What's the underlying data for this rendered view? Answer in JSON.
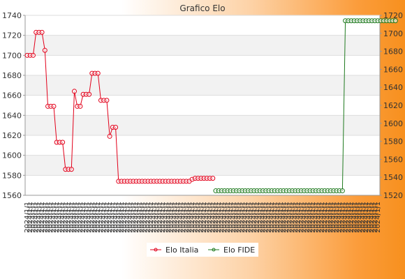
{
  "chart_data": {
    "type": "line",
    "title": "Grafico Elo",
    "xlabel": "",
    "ylabel": "",
    "grid": true,
    "legend_position": "bottom",
    "y_left": {
      "min": 1560,
      "max": 1740,
      "step": 20,
      "ticks": [
        "1560",
        "1580",
        "1600",
        "1620",
        "1640",
        "1660",
        "1680",
        "1700",
        "1720",
        "1740"
      ]
    },
    "y_right": {
      "min": 1520,
      "max": 1720,
      "step": 20,
      "ticks": [
        "1520",
        "1540",
        "1560",
        "1580",
        "1600",
        "1620",
        "1640",
        "1660",
        "1680",
        "1700",
        "1720"
      ]
    },
    "x_tick_label": "2024/1/1",
    "x_count": 120,
    "series": [
      {
        "name": "Elo Italia",
        "axis": "left",
        "color": "#e2001a",
        "values": [
          1700,
          1700,
          1700,
          1723,
          1723,
          1723,
          1705,
          1649,
          1649,
          1649,
          1613,
          1613,
          1613,
          1586,
          1586,
          1586,
          1664,
          1649,
          1649,
          1661,
          1661,
          1661,
          1682,
          1682,
          1682,
          1655,
          1655,
          1655,
          1619,
          1628,
          1628,
          1574,
          1574,
          1574,
          1574,
          1574,
          1574,
          1574,
          1574,
          1574,
          1574,
          1574,
          1574,
          1574,
          1574,
          1574,
          1574,
          1574,
          1574,
          1574,
          1574,
          1574,
          1574,
          1574,
          1574,
          1574,
          1576,
          1577,
          1577,
          1577,
          1577,
          1577,
          1577,
          1577,
          null,
          null,
          null,
          null,
          null,
          null,
          null,
          null,
          null,
          null,
          null,
          null,
          null,
          null,
          null,
          null,
          null,
          null,
          null,
          null,
          null,
          null,
          null,
          null,
          null,
          null,
          null,
          null,
          null,
          null,
          null,
          null,
          null,
          null,
          null,
          null,
          null,
          null,
          null,
          null,
          null,
          null,
          null,
          null,
          null,
          null,
          null,
          null,
          null,
          null,
          null,
          null,
          null,
          null,
          null,
          null
        ]
      },
      {
        "name": "Elo FIDE",
        "axis": "right",
        "color": "#1f7a1f",
        "values": [
          null,
          null,
          null,
          null,
          null,
          null,
          null,
          null,
          null,
          null,
          null,
          null,
          null,
          null,
          null,
          null,
          null,
          null,
          null,
          null,
          null,
          null,
          null,
          null,
          null,
          null,
          null,
          null,
          null,
          null,
          null,
          null,
          null,
          null,
          null,
          null,
          null,
          null,
          null,
          null,
          null,
          null,
          null,
          null,
          null,
          null,
          null,
          null,
          null,
          null,
          null,
          null,
          null,
          null,
          null,
          null,
          null,
          null,
          null,
          null,
          null,
          null,
          null,
          null,
          1525,
          1525,
          1525,
          1525,
          1525,
          1525,
          1525,
          1525,
          1525,
          1525,
          1525,
          1525,
          1525,
          1525,
          1525,
          1525,
          1525,
          1525,
          1525,
          1525,
          1525,
          1525,
          1525,
          1525,
          1525,
          1525,
          1525,
          1525,
          1525,
          1525,
          1525,
          1525,
          1525,
          1525,
          1525,
          1525,
          1525,
          1525,
          1525,
          1525,
          1525,
          1525,
          1525,
          1525,
          1714,
          1714,
          1714,
          1714,
          1714,
          1714,
          1714,
          1714,
          1714,
          1714,
          1714,
          1714,
          1714,
          1714,
          1714,
          1714,
          1714,
          1714
        ]
      }
    ]
  }
}
